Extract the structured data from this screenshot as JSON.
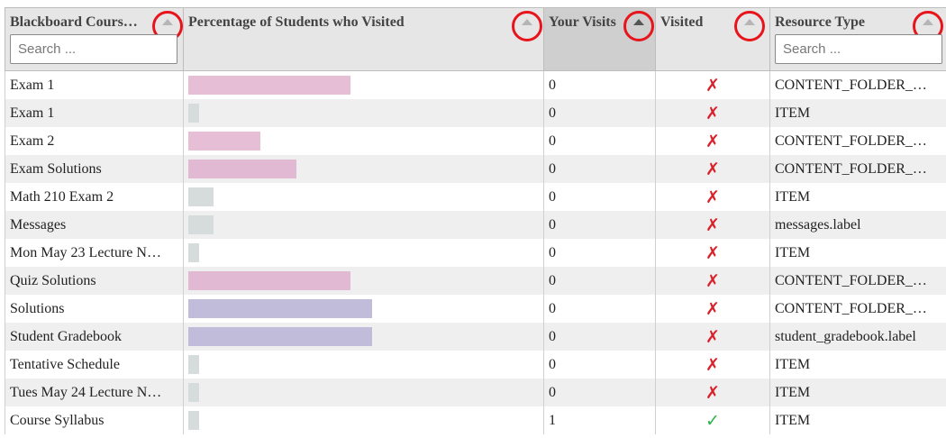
{
  "columns": [
    {
      "label": "Blackboard Cours…",
      "search_placeholder": "Search ..."
    },
    {
      "label": "Percentage of Students who Visited"
    },
    {
      "label": "Your Visits"
    },
    {
      "label": "Visited"
    },
    {
      "label": "Resource Type",
      "search_placeholder": "Search ..."
    }
  ],
  "colors": {
    "pink": "#e6bfd6",
    "lavender": "#c0bcd9",
    "gray": "#d6dbdb",
    "cross": "#d8212a",
    "check": "#2db34a",
    "annotation_ring": "#e8141b"
  },
  "rows": [
    {
      "name": "Exam 1",
      "pct": 0.45,
      "bar_color": "#e6bfd6",
      "visits": "0",
      "visited": "✗",
      "visited_state": "no",
      "type": "CONTENT_FOLDER_…"
    },
    {
      "name": "Exam 1",
      "pct": 0.03,
      "bar_color": "#d6dbdb",
      "visits": "0",
      "visited": "✗",
      "visited_state": "no",
      "type": "ITEM"
    },
    {
      "name": "Exam 2",
      "pct": 0.2,
      "bar_color": "#e6bfd6",
      "visits": "0",
      "visited": "✗",
      "visited_state": "no",
      "type": "CONTENT_FOLDER_…"
    },
    {
      "name": "Exam Solutions",
      "pct": 0.3,
      "bar_color": "#e2b9d2",
      "visits": "0",
      "visited": "✗",
      "visited_state": "no",
      "type": "CONTENT_FOLDER_…"
    },
    {
      "name": "Math 210 Exam 2",
      "pct": 0.07,
      "bar_color": "#d6dbdb",
      "visits": "0",
      "visited": "✗",
      "visited_state": "no",
      "type": "ITEM"
    },
    {
      "name": "Messages",
      "pct": 0.07,
      "bar_color": "#d6dbdb",
      "visits": "0",
      "visited": "✗",
      "visited_state": "no",
      "type": "messages.label"
    },
    {
      "name": "Mon May 23 Lecture N…",
      "pct": 0.03,
      "bar_color": "#d6dbdb",
      "visits": "0",
      "visited": "✗",
      "visited_state": "no",
      "type": "ITEM"
    },
    {
      "name": "Quiz Solutions",
      "pct": 0.45,
      "bar_color": "#e2b9d2",
      "visits": "0",
      "visited": "✗",
      "visited_state": "no",
      "type": "CONTENT_FOLDER_…"
    },
    {
      "name": "Solutions",
      "pct": 0.51,
      "bar_color": "#c0bcd9",
      "visits": "0",
      "visited": "✗",
      "visited_state": "no",
      "type": "CONTENT_FOLDER_…"
    },
    {
      "name": "Student Gradebook",
      "pct": 0.51,
      "bar_color": "#c0bcd9",
      "visits": "0",
      "visited": "✗",
      "visited_state": "no",
      "type": "student_gradebook.label"
    },
    {
      "name": "Tentative Schedule",
      "pct": 0.03,
      "bar_color": "#d6dbdb",
      "visits": "0",
      "visited": "✗",
      "visited_state": "no",
      "type": "ITEM"
    },
    {
      "name": "Tues May 24 Lecture N…",
      "pct": 0.03,
      "bar_color": "#d6dbdb",
      "visits": "0",
      "visited": "✗",
      "visited_state": "no",
      "type": "ITEM"
    },
    {
      "name": "Course Syllabus",
      "pct": 0.03,
      "bar_color": "#d6dbdb",
      "visits": "1",
      "visited": "✓",
      "visited_state": "yes",
      "type": "ITEM"
    }
  ]
}
